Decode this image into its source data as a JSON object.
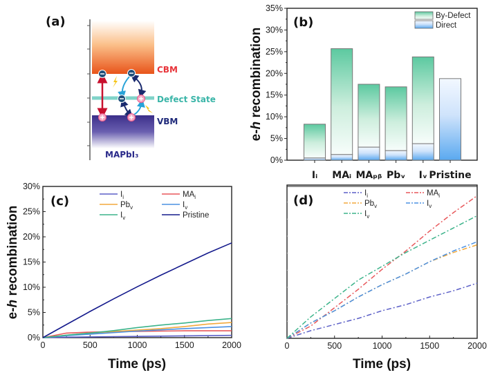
{
  "figure": {
    "panel_a": {
      "label": "(a)",
      "cbm_label": "CBM",
      "defect_label": "Defect State",
      "vbm_label": "VBM",
      "material_label": "MAPbI₃",
      "colors": {
        "cbm": "#e8541a",
        "defect": "#3ab5a8",
        "vbm": "#3b2f8a",
        "direct_arrow": "#c8102e",
        "defect_arrow_light": "#29a3d8",
        "defect_arrow_dark": "#1a2a6e",
        "photon": "#f5c518",
        "electron": "#1f4e79",
        "hole": "#e85a8a"
      }
    }
  },
  "chart_data": [
    {
      "panel": "b",
      "type": "bar",
      "stacked": true,
      "label": "(b)",
      "title": "",
      "xlabel": "",
      "ylabel": "e-h recombination",
      "ylabel_prefix": "e-",
      "ylabel_italic": "h",
      "ylabel_suffix": " recombination",
      "ylim": [
        0,
        35
      ],
      "yticks": [
        0,
        5,
        10,
        15,
        20,
        25,
        30,
        35
      ],
      "ytick_labels": [
        "0%",
        "5%",
        "10%",
        "15%",
        "20%",
        "25%",
        "30%",
        "35%"
      ],
      "categories": [
        "Iᵢ",
        "MAᵢ",
        "MAₚᵦ",
        "Pbᵥ",
        "Iᵥ",
        "Pristine"
      ],
      "category_labels_rendered": [
        "Iᵢ",
        "MAᵢ",
        "MAₚᵦ",
        "Pbᵥ",
        "Iᵥ",
        "Pristine"
      ],
      "series": [
        {
          "name": "Direct",
          "values": [
            0.5,
            1.3,
            3.0,
            2.2,
            3.8,
            18.8
          ],
          "color": "#5aa9f0"
        },
        {
          "name": "By-Defect",
          "values": [
            7.8,
            24.4,
            14.5,
            14.7,
            20.0,
            0
          ],
          "color": "#5cc9a0"
        }
      ],
      "totals": [
        8.3,
        25.7,
        17.5,
        16.9,
        23.8,
        18.8
      ],
      "legend": [
        "By-Defect",
        "Direct"
      ],
      "legend_position": "top-right",
      "grid": false
    },
    {
      "panel": "c",
      "type": "line",
      "label": "(c)",
      "title": "",
      "xlabel": "Time (ps)",
      "ylabel": "e-h recombination",
      "ylabel_prefix": "e-",
      "ylabel_italic": "h",
      "ylabel_suffix": " recombination",
      "xlim": [
        0,
        2000
      ],
      "ylim": [
        0,
        30
      ],
      "xticks": [
        0,
        500,
        1000,
        1500,
        2000
      ],
      "xtick_labels": [
        "0",
        "500",
        "1000",
        "1500",
        "2000"
      ],
      "yticks": [
        0,
        5,
        10,
        15,
        20,
        25,
        30
      ],
      "ytick_labels": [
        "0%",
        "5%",
        "10%",
        "15%",
        "20%",
        "25%",
        "30%"
      ],
      "x": [
        0,
        250,
        500,
        750,
        1000,
        1250,
        1500,
        1750,
        2000
      ],
      "series": [
        {
          "name": "Iᵢ",
          "base": "I",
          "sub": "i",
          "color": "#5b5fc7",
          "values": [
            0,
            0.1,
            0.15,
            0.2,
            0.25,
            0.3,
            0.35,
            0.4,
            0.45
          ]
        },
        {
          "name": "MAᵢ",
          "base": "MA",
          "sub": "i",
          "color": "#e8575a",
          "values": [
            0,
            0.9,
            1.1,
            1.2,
            1.25,
            1.3,
            1.35,
            1.35,
            1.35
          ]
        },
        {
          "name": "Pbᵥ",
          "base": "Pb",
          "sub": "v",
          "color": "#f2a93b",
          "values": [
            0,
            0.5,
            0.9,
            1.2,
            1.5,
            1.8,
            2.2,
            2.7,
            3.0
          ]
        },
        {
          "name": "Iᵥ",
          "base": "I",
          "sub": "v",
          "color": "#4a90e2",
          "values": [
            0,
            0.4,
            0.7,
            1.0,
            1.3,
            1.55,
            1.8,
            2.0,
            2.2
          ]
        },
        {
          "name": "Iᵥ",
          "base": "I",
          "sub": "v",
          "color": "#3bb38a",
          "values": [
            0,
            0.5,
            0.9,
            1.4,
            2.0,
            2.5,
            2.9,
            3.4,
            3.8
          ]
        },
        {
          "name": "Pristine",
          "base": "Pristine",
          "sub": "",
          "color": "#141a8c",
          "values": [
            0,
            2.6,
            5.2,
            7.7,
            10.1,
            12.4,
            14.6,
            16.8,
            18.8
          ]
        }
      ],
      "legend_position": "top-right",
      "grid": false
    },
    {
      "panel": "d",
      "type": "line",
      "linestyle": "dash-dot",
      "label": "(d)",
      "title": "",
      "xlabel": "Time (ps)",
      "ylabel": "",
      "xlim": [
        0,
        2000
      ],
      "ylim": [
        0,
        1
      ],
      "xticks": [
        0,
        500,
        1000,
        1500,
        2000
      ],
      "xtick_labels": [
        "0",
        "500",
        "1000",
        "1500",
        "2000"
      ],
      "yticks_unlabeled": true,
      "x": [
        0,
        250,
        500,
        750,
        1000,
        1250,
        1500,
        1750,
        2000
      ],
      "series": [
        {
          "name": "Iᵢ",
          "base": "I",
          "sub": "i",
          "color": "#5b5fc7",
          "values": [
            0,
            0.05,
            0.09,
            0.13,
            0.18,
            0.22,
            0.27,
            0.31,
            0.36
          ]
        },
        {
          "name": "MAᵢ",
          "base": "MA",
          "sub": "i",
          "color": "#e8575a",
          "values": [
            0,
            0.08,
            0.2,
            0.32,
            0.45,
            0.57,
            0.7,
            0.82,
            0.93
          ]
        },
        {
          "name": "Pbᵥ",
          "base": "Pb",
          "sub": "v",
          "color": "#f2a93b",
          "values": [
            0,
            0.1,
            0.18,
            0.27,
            0.35,
            0.42,
            0.5,
            0.56,
            0.61
          ]
        },
        {
          "name": "Iᵥ",
          "base": "I",
          "sub": "v",
          "color": "#4a90e2",
          "values": [
            0,
            0.1,
            0.18,
            0.27,
            0.35,
            0.42,
            0.5,
            0.57,
            0.63
          ]
        },
        {
          "name": "Iᵥ",
          "base": "I",
          "sub": "v",
          "color": "#3bb38a",
          "values": [
            0,
            0.14,
            0.26,
            0.38,
            0.47,
            0.56,
            0.64,
            0.72,
            0.8
          ]
        }
      ],
      "legend_position": "top",
      "grid": false
    }
  ]
}
